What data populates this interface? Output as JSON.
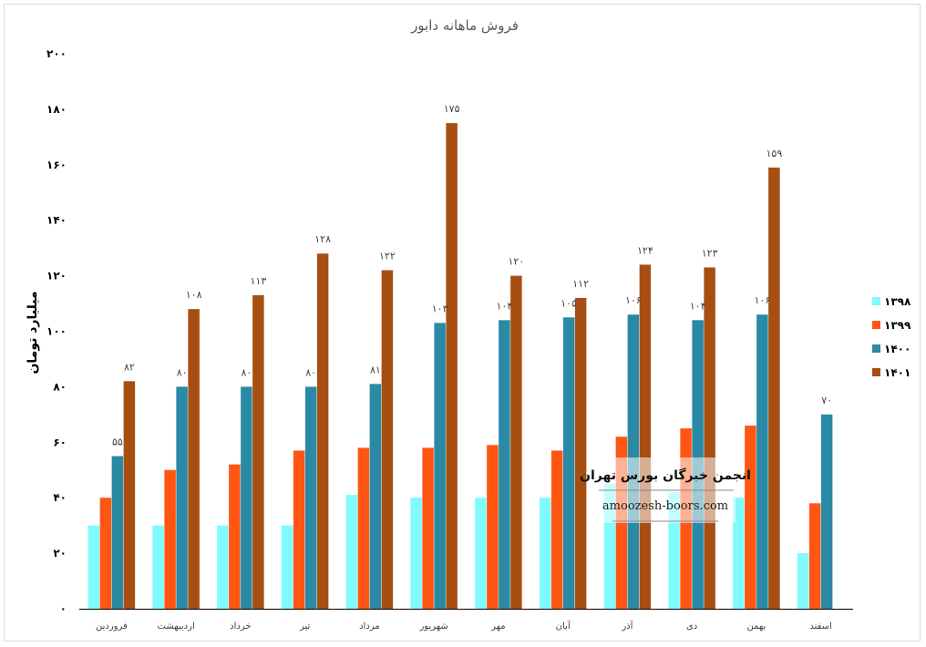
{
  "chart_data": {
    "type": "bar",
    "title": "فروش ماهانه دابور",
    "ylabel": "میلیارد تومان",
    "ylim": [
      0,
      200
    ],
    "yticks": [
      "۰",
      "۲۰",
      "۴۰",
      "۶۰",
      "۸۰",
      "۱۰۰",
      "۱۲۰",
      "۱۴۰",
      "۱۶۰",
      "۱۸۰",
      "۲۰۰"
    ],
    "categories": [
      "فروردین",
      "اردیبهشت",
      "خرداد",
      "تیر",
      "مرداد",
      "شهریور",
      "مهر",
      "آبان",
      "آذر",
      "دی",
      "بهمن",
      "اسفند"
    ],
    "grid": false,
    "legend_position": "right",
    "series": [
      {
        "name": "۱۳۹۸",
        "color": "#7ffbff",
        "values": [
          30,
          30,
          30,
          30,
          41,
          40,
          40,
          40,
          45,
          42,
          40,
          20
        ],
        "labels": []
      },
      {
        "name": "۱۳۹۹",
        "color": "#ff5613",
        "values": [
          40,
          50,
          52,
          57,
          58,
          58,
          59,
          57,
          62,
          65,
          66,
          38
        ],
        "labels": []
      },
      {
        "name": "۱۴۰۰",
        "color": "#2a89a5",
        "values": [
          55,
          80,
          80,
          80,
          81,
          103,
          104,
          105,
          106,
          104,
          106,
          70
        ],
        "labels": [
          "۵۵",
          "۸۰",
          "۸۰",
          "۸۰",
          "۸۱",
          "۱۰۳",
          "۱۰۴",
          "۱۰۵",
          "۱۰۶",
          "۱۰۴",
          "۱۰۶",
          "۷۰"
        ]
      },
      {
        "name": "۱۴۰۱",
        "color": "#a74f12",
        "values": [
          82,
          108,
          113,
          128,
          122,
          175,
          120,
          112,
          124,
          123,
          159,
          null
        ],
        "labels": [
          "۸۲",
          "۱۰۸",
          "۱۱۳",
          "۱۲۸",
          "۱۲۲",
          "۱۷۵",
          "۱۲۰",
          "۱۱۲",
          "۱۲۴",
          "۱۲۳",
          "۱۵۹",
          ""
        ]
      }
    ]
  },
  "watermark": {
    "title": "انجمن خبرگان بورس تهران",
    "url": "amoozesh-boors.com"
  }
}
